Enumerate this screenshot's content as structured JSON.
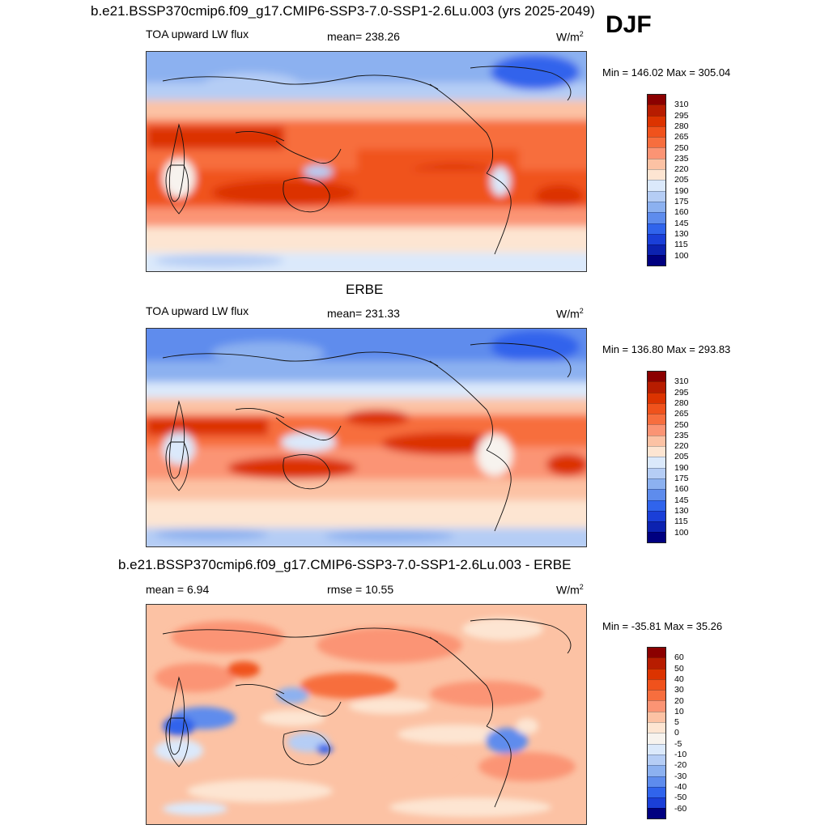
{
  "season": "DJF",
  "panels": [
    {
      "title": "b.e21.BSSP370cmip6.f09_g17.CMIP6-SSP3-7.0-SSP1-2.6Lu.003 (yrs 2025-2049)",
      "left_label": "TOA upward LW flux",
      "center_label": "mean= 238.26",
      "units": "W/m",
      "units_sup": "2",
      "minmax": "Min = 146.02 Max = 305.04"
    },
    {
      "title": "ERBE",
      "left_label": "TOA upward LW flux",
      "center_label": "mean= 231.33",
      "units": "W/m",
      "units_sup": "2",
      "minmax": "Min = 136.80 Max = 293.83"
    },
    {
      "title": "b.e21.BSSP370cmip6.f09_g17.CMIP6-SSP3-7.0-SSP1-2.6Lu.003 - ERBE",
      "left_label": "mean =   6.94",
      "center_label": "rmse =  10.55",
      "units": "W/m",
      "units_sup": "2",
      "minmax": "Min = -35.81 Max =  35.26"
    }
  ],
  "colorbars": {
    "abs": {
      "labels": [
        "310",
        "295",
        "280",
        "265",
        "250",
        "235",
        "220",
        "205",
        "190",
        "175",
        "160",
        "145",
        "130",
        "115",
        "100"
      ],
      "colors": [
        "#8b0000",
        "#b71c00",
        "#dc3300",
        "#f0521c",
        "#f76e3e",
        "#fb9474",
        "#fcc2a4",
        "#fde5d2",
        "#dbe9fb",
        "#b5cdf5",
        "#8cb1f0",
        "#5e8ced",
        "#3064ec",
        "#1a3fd8",
        "#0c22b0",
        "#000080"
      ]
    },
    "diff": {
      "labels": [
        "60",
        "50",
        "40",
        "30",
        "20",
        "10",
        "5",
        "0",
        "-5",
        "-10",
        "-20",
        "-30",
        "-40",
        "-50",
        "-60"
      ],
      "colors": [
        "#8b0000",
        "#b71c00",
        "#dc3300",
        "#f0521c",
        "#f76e3e",
        "#fb9474",
        "#fcc2a4",
        "#fde5d2",
        "#f7f3ee",
        "#dbe9fb",
        "#b5cdf5",
        "#8cb1f0",
        "#5e8ced",
        "#3064ec",
        "#1a3fd8",
        "#000080"
      ]
    }
  },
  "chart_data": [
    {
      "type": "heatmap",
      "title": "b.e21.BSSP370cmip6.f09_g17.CMIP6-SSP3-7.0-SSP1-2.6Lu.003 (yrs 2025-2049)",
      "variable": "TOA upward LW flux",
      "units": "W/m2",
      "mean": 238.26,
      "min": 146.02,
      "max": 305.04,
      "levels": [
        100,
        115,
        130,
        145,
        160,
        175,
        190,
        205,
        220,
        235,
        250,
        265,
        280,
        295,
        310
      ]
    },
    {
      "type": "heatmap",
      "title": "ERBE",
      "variable": "TOA upward LW flux",
      "units": "W/m2",
      "mean": 231.33,
      "min": 136.8,
      "max": 293.83,
      "levels": [
        100,
        115,
        130,
        145,
        160,
        175,
        190,
        205,
        220,
        235,
        250,
        265,
        280,
        295,
        310
      ]
    },
    {
      "type": "heatmap",
      "title": "b.e21.BSSP370cmip6.f09_g17.CMIP6-SSP3-7.0-SSP1-2.6Lu.003 - ERBE",
      "units": "W/m2",
      "mean": 6.94,
      "rmse": 10.55,
      "min": -35.81,
      "max": 35.26,
      "levels": [
        -60,
        -50,
        -40,
        -30,
        -20,
        -10,
        -5,
        0,
        5,
        10,
        20,
        30,
        40,
        50,
        60
      ]
    }
  ]
}
